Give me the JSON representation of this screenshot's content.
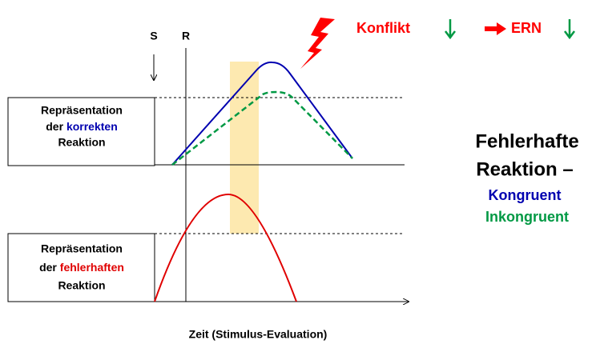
{
  "labels": {
    "s": "S",
    "r": "R"
  },
  "header": {
    "konflikt": "Konflikt",
    "ern": "ERN"
  },
  "boxes": [
    {
      "line1": "Repräsentation",
      "line2_prefix": "der",
      "line2_word": "korrekten",
      "line3": "Reaktion"
    },
    {
      "line1": "Repräsentation",
      "line2_prefix": "der",
      "line2_word": "fehlerhaften",
      "line3": "Reaktion"
    }
  ],
  "legend": {
    "title1": "Fehlerhafte",
    "title2": "Reaktion –",
    "item1": "Kongruent",
    "item2": "Inkongruent"
  },
  "x_axis_label": "Zeit (Stimulus-Evaluation)"
}
